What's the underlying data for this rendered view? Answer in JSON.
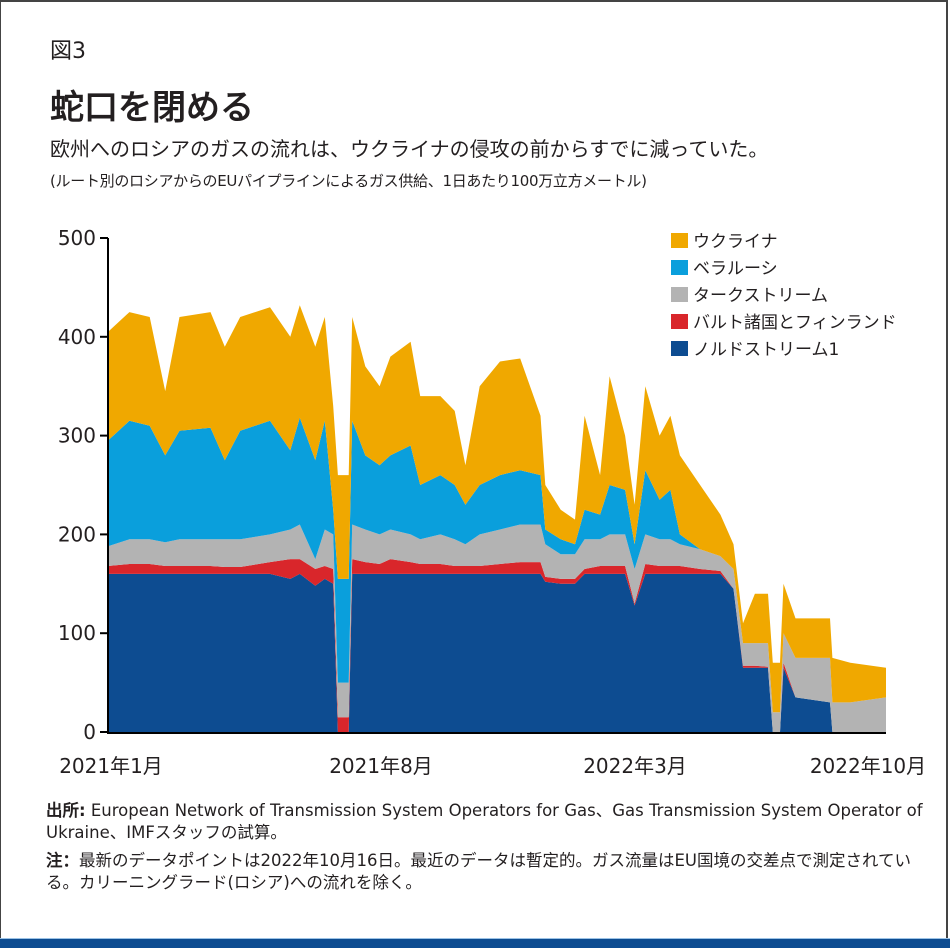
{
  "figure_label": "図3",
  "title": "蛇口を閉める",
  "subtitle": "欧州へのロシアのガスの流れは、ウクライナの侵攻の前からすでに減っていた。",
  "units": "(ルート別のロシアからのEUパイプラインによるガス供給、1日あたり100万立方メートル)",
  "source_label": "出所:",
  "source_text": " European Network of Transmission System Operators for Gas、Gas Transmission System Operator of Ukraine、IMFスタッフの試算。",
  "note_label": "注：",
  "note_text": "最新のデータポイントは2022年10月16日。最近のデータは暫定的。ガス流量はEU国境の交差点で測定されている。カリーニングラード(ロシア)への流れを除く。",
  "chart_data": {
    "type": "area",
    "stacked": true,
    "ylim": [
      0,
      500
    ],
    "yticks": [
      "0",
      "100",
      "200",
      "300",
      "400",
      "500"
    ],
    "xlim": [
      "2021-01-01",
      "2022-10-16"
    ],
    "xtick_labels": [
      "2021年1月",
      "2021年8月",
      "2022年3月",
      "2022年10月"
    ],
    "grid": false,
    "legend_placement": "top-right",
    "x": [
      "2021-01-01",
      "2021-01-19",
      "2021-02-05",
      "2021-02-18",
      "2021-03-02",
      "2021-03-28",
      "2021-04-09",
      "2021-04-22",
      "2021-05-17",
      "2021-06-03",
      "2021-06-11",
      "2021-06-24",
      "2021-07-02",
      "2021-07-09",
      "2021-07-13",
      "2021-07-22",
      "2021-07-25",
      "2021-08-05",
      "2021-08-17",
      "2021-08-26",
      "2021-09-12",
      "2021-09-20",
      "2021-10-07",
      "2021-10-19",
      "2021-10-28",
      "2021-11-09",
      "2021-11-26",
      "2021-12-13",
      "2021-12-30",
      "2022-01-03",
      "2022-01-16",
      "2022-01-28",
      "2022-02-05",
      "2022-02-18",
      "2022-02-26",
      "2022-03-11",
      "2022-03-19",
      "2022-03-28",
      "2022-04-09",
      "2022-04-18",
      "2022-04-26",
      "2022-05-13",
      "2022-05-30",
      "2022-06-10",
      "2022-06-18",
      "2022-06-28",
      "2022-07-09",
      "2022-07-13",
      "2022-07-19",
      "2022-07-22",
      "2022-08-01",
      "2022-08-30",
      "2022-09-01",
      "2022-09-16",
      "2022-10-16"
    ],
    "series": [
      {
        "name": "ノルドストリーム1",
        "color": "#0d4c91",
        "values": [
          160,
          160,
          160,
          160,
          160,
          160,
          160,
          160,
          160,
          155,
          160,
          148,
          155,
          150,
          0,
          0,
          160,
          160,
          160,
          160,
          160,
          160,
          160,
          160,
          160,
          160,
          160,
          160,
          160,
          152,
          150,
          150,
          160,
          160,
          160,
          160,
          128,
          160,
          160,
          160,
          160,
          160,
          160,
          145,
          65,
          65,
          65,
          0,
          0,
          65,
          35,
          30,
          0,
          0,
          0
        ]
      },
      {
        "name": "バルト諸国とフィンランド",
        "color": "#d9262b",
        "values": [
          8,
          10,
          10,
          8,
          8,
          8,
          7,
          7,
          12,
          20,
          15,
          17,
          13,
          15,
          15,
          15,
          15,
          12,
          10,
          15,
          12,
          10,
          10,
          8,
          8,
          8,
          10,
          12,
          12,
          5,
          5,
          5,
          5,
          8,
          8,
          8,
          2,
          10,
          8,
          8,
          8,
          5,
          3,
          0,
          2,
          2,
          1,
          0,
          0,
          5,
          0,
          0,
          0,
          0,
          0
        ]
      },
      {
        "name": "タークストリーム",
        "color": "#b3b3b3",
        "values": [
          20,
          25,
          25,
          24,
          27,
          27,
          28,
          28,
          28,
          30,
          35,
          10,
          37,
          35,
          35,
          35,
          35,
          33,
          30,
          30,
          28,
          25,
          30,
          27,
          22,
          32,
          35,
          38,
          38,
          33,
          25,
          25,
          30,
          27,
          32,
          32,
          35,
          30,
          27,
          27,
          22,
          20,
          15,
          20,
          23,
          23,
          24,
          20,
          20,
          30,
          40,
          45,
          30,
          30,
          35
        ]
      },
      {
        "name": "ベラルーシ",
        "color": "#0a9fdc",
        "values": [
          107,
          120,
          115,
          88,
          110,
          113,
          80,
          110,
          115,
          80,
          108,
          100,
          110,
          25,
          105,
          105,
          105,
          75,
          70,
          75,
          90,
          55,
          60,
          55,
          40,
          50,
          55,
          55,
          50,
          15,
          15,
          10,
          30,
          25,
          50,
          45,
          25,
          65,
          40,
          50,
          10,
          0,
          0,
          0,
          0,
          0,
          0,
          0,
          0,
          0,
          0,
          0,
          0,
          0,
          0
        ]
      },
      {
        "name": "ウクライナ",
        "color": "#f0a800",
        "values": [
          110,
          110,
          110,
          65,
          115,
          117,
          115,
          115,
          115,
          115,
          114,
          115,
          105,
          105,
          105,
          105,
          105,
          90,
          80,
          100,
          105,
          90,
          80,
          75,
          40,
          100,
          115,
          113,
          60,
          45,
          30,
          25,
          95,
          40,
          110,
          55,
          40,
          85,
          65,
          75,
          80,
          65,
          42,
          25,
          20,
          50,
          50,
          50,
          50,
          50,
          40,
          40,
          45,
          40,
          30
        ]
      }
    ],
    "legend_order": [
      "ウクライナ",
      "ベラルーシ",
      "タークストリーム",
      "バルト諸国とフィンランド",
      "ノルドストリーム1"
    ]
  }
}
